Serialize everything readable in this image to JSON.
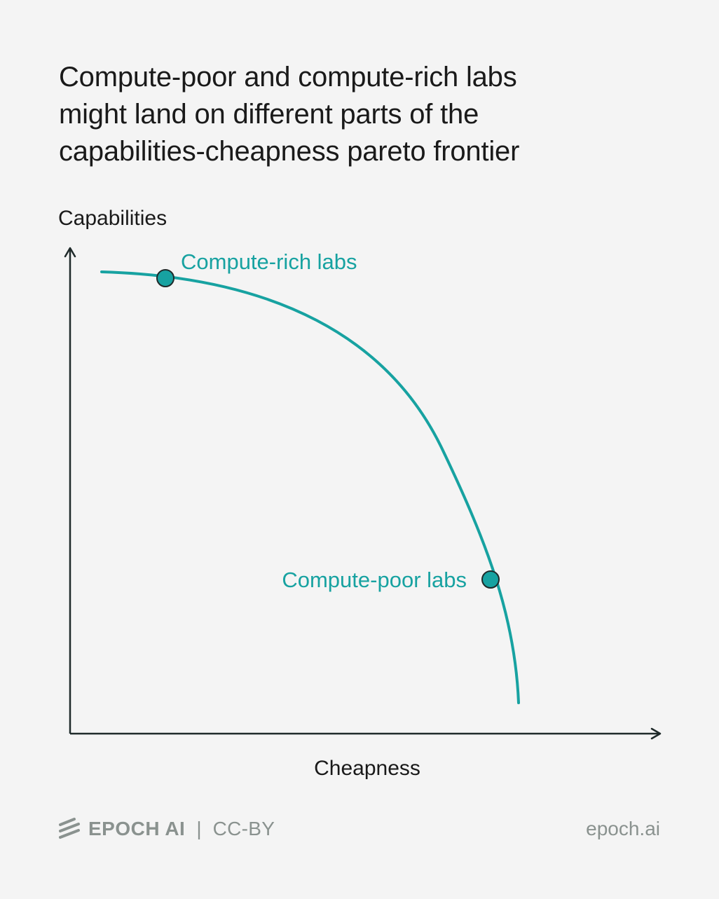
{
  "title": {
    "lines": [
      "Compute-poor and compute-rich labs",
      "might land on different parts of the",
      "capabilities-cheapness pareto frontier"
    ]
  },
  "diagram": {
    "y_axis_label": "Capabilities",
    "x_axis_label": "Cheapness",
    "curve_color": "#17a2a1",
    "axis_color": "#1f2a2a",
    "points": [
      {
        "label": "Compute-rich labs"
      },
      {
        "label": "Compute-poor labs"
      }
    ]
  },
  "footer": {
    "logo_icon": "epoch-logo-icon",
    "brand": "EPOCH AI",
    "separator": "|",
    "license": "CC-BY",
    "site": "epoch.ai"
  }
}
